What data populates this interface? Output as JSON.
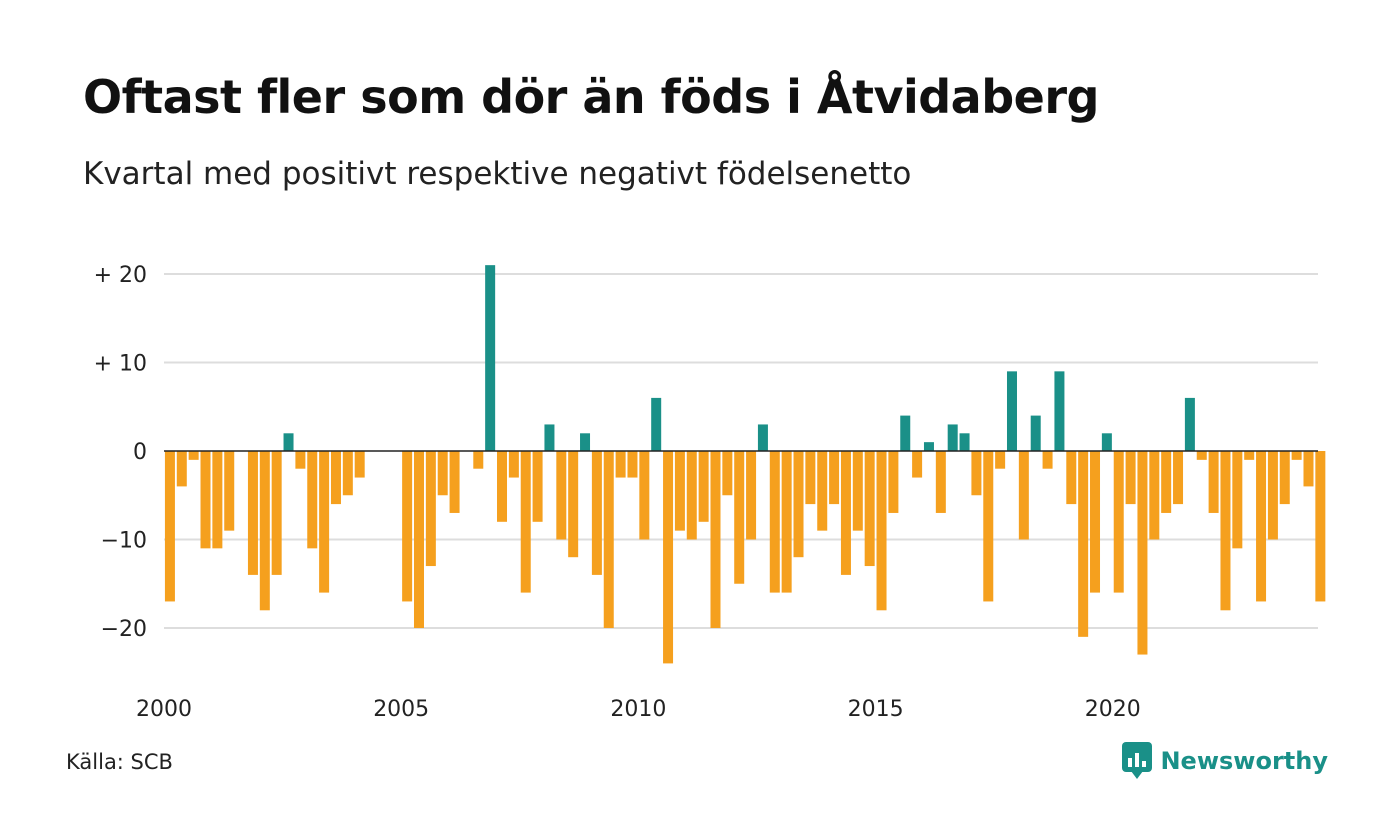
{
  "title": "Oftast fler som dör än föds i Åtvidaberg",
  "subtitle": "Kvartal med positivt respektive negativt födelsenetto",
  "source": "Källa: SCB",
  "brand": "Newsworthy",
  "colors": {
    "positive": "#1a9088",
    "negative": "#f5a01e",
    "grid": "#dddddd",
    "zero_line": "#222222"
  },
  "chart_data": {
    "type": "bar",
    "title": "Oftast fler som dör än föds i Åtvidaberg",
    "subtitle": "Kvartal med positivt respektive negativt födelsenetto",
    "x_start_year": 2000,
    "periods_per_year": 4,
    "x_ticks": [
      "2000",
      "2005",
      "2010",
      "2015",
      "2020"
    ],
    "y_ticks": [
      {
        "value": 20,
        "label": "+ 20"
      },
      {
        "value": 10,
        "label": "+ 10"
      },
      {
        "value": 0,
        "label": "0"
      },
      {
        "value": -10,
        "label": "−10"
      },
      {
        "value": -20,
        "label": "−20"
      }
    ],
    "ylim": [
      -25,
      22
    ],
    "grid": true,
    "values": [
      -17,
      -4,
      -1,
      -11,
      -11,
      -9,
      0,
      -14,
      -18,
      -14,
      2,
      -2,
      -11,
      -16,
      -6,
      -5,
      -3,
      0,
      0,
      0,
      -17,
      -20,
      -13,
      -5,
      -7,
      0,
      -2,
      21,
      -8,
      -3,
      -16,
      -8,
      3,
      -10,
      -12,
      2,
      -14,
      -20,
      -3,
      -3,
      -10,
      6,
      -24,
      -9,
      -10,
      -8,
      -20,
      -5,
      -15,
      -10,
      3,
      -16,
      -16,
      -12,
      -6,
      -9,
      -6,
      -14,
      -9,
      -13,
      -18,
      -7,
      4,
      -3,
      1,
      -7,
      3,
      2,
      -5,
      -17,
      -2,
      9,
      -10,
      4,
      -2,
      9,
      -6,
      -21,
      -16,
      2,
      -16,
      -6,
      -23,
      -10,
      -7,
      -6,
      6,
      -1,
      -7,
      -18,
      -11,
      -1,
      -17,
      -10,
      -6,
      -1,
      -4,
      -17
    ]
  }
}
